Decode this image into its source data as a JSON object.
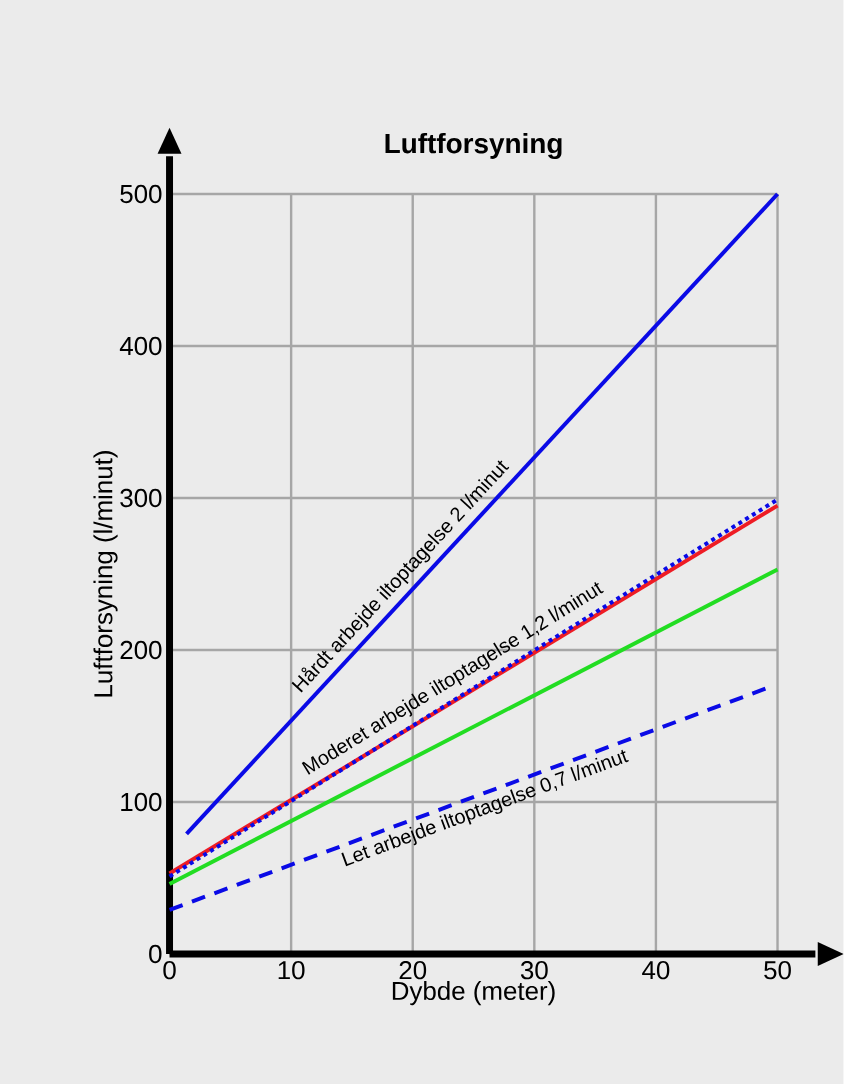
{
  "chart_data": {
    "type": "line",
    "title": "Luftforsyning",
    "xlabel": "Dybde (meter)",
    "ylabel": "Luftforsyning (l/minut)",
    "xlim": [
      0,
      50
    ],
    "ylim": [
      0,
      500
    ],
    "xticks": [
      0,
      10,
      20,
      30,
      40,
      50
    ],
    "yticks": [
      0,
      100,
      200,
      300,
      400,
      500
    ],
    "grid": true,
    "series": [
      {
        "color": "#0a0ae6",
        "x": [
          1.4,
          50
        ],
        "values": [
          79,
          500
        ],
        "line_style": "solid"
      },
      {
        "color": "#ee1c24",
        "x": [
          0,
          50
        ],
        "values": [
          53,
          295
        ],
        "line_style": "solid"
      },
      {
        "color": "#0a0ae6",
        "x": [
          0,
          50
        ],
        "values": [
          51,
          299
        ],
        "line_style": "dotted"
      },
      {
        "color": "#22dd22",
        "x": [
          0,
          50
        ],
        "values": [
          46,
          253
        ],
        "line_style": "solid"
      },
      {
        "color": "#0a0ae6",
        "x": [
          0,
          49.5
        ],
        "values": [
          29,
          176
        ],
        "line_style": "dashed"
      }
    ],
    "annotations": [
      {
        "text": "Hårdt arbejde iltoptagelse 2 l/minut",
        "x": 20,
        "y": 241
      },
      {
        "text": "Moderet arbejde iltoptagelse 1,2 l/minut",
        "x": 24,
        "y": 172
      },
      {
        "text": "Let arbejde iltoptagelse 0,7 l/minut",
        "x": 25.5,
        "y": 105
      }
    ]
  }
}
